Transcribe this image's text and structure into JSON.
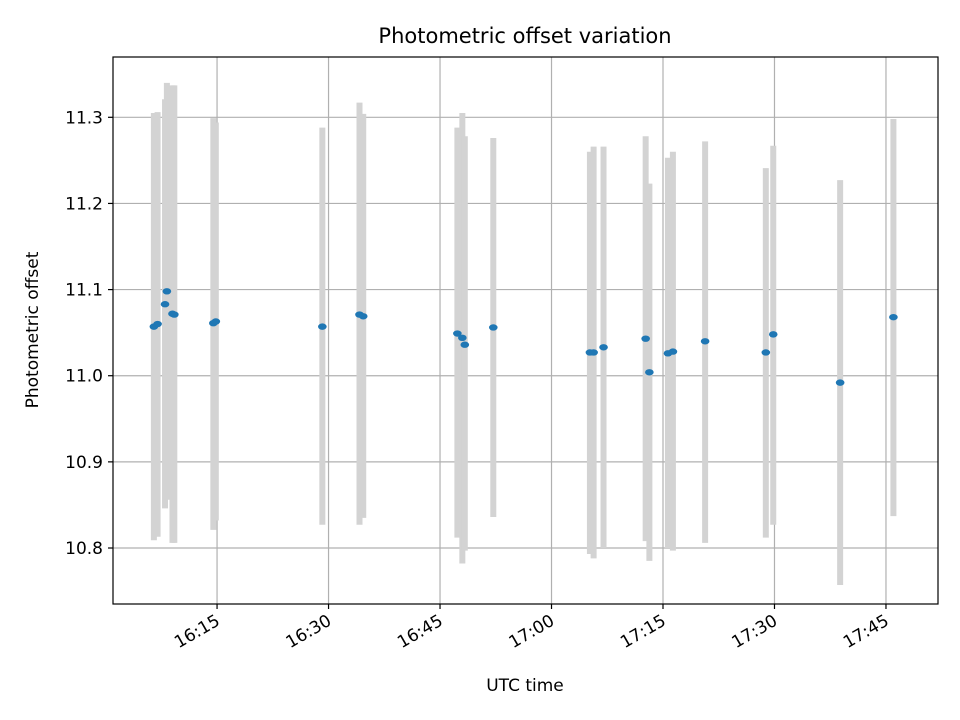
{
  "chart_data": {
    "type": "scatter",
    "title": "Photometric offset variation",
    "xlabel": "UTC time",
    "ylabel": "Photometric offset",
    "x_format": "HH:MM",
    "xlim": [
      "16:01",
      "17:52"
    ],
    "ylim": [
      10.735,
      11.37
    ],
    "x_ticks": [
      "16:15",
      "16:30",
      "16:45",
      "17:00",
      "17:15",
      "17:30",
      "17:45"
    ],
    "y_ticks": [
      "10.8",
      "10.9",
      "11.0",
      "11.1",
      "11.2",
      "11.3"
    ],
    "grid": true,
    "point_color": "#1f77b4",
    "errorbar_color": "#d3d3d3",
    "points": [
      {
        "x": "16:06:30",
        "y": 11.057,
        "ylo": 10.809,
        "yhi": 11.305
      },
      {
        "x": "16:07:00",
        "y": 11.06,
        "ylo": 10.813,
        "yhi": 11.306
      },
      {
        "x": "16:08:00",
        "y": 11.083,
        "ylo": 10.846,
        "yhi": 11.321
      },
      {
        "x": "16:08:15",
        "y": 11.098,
        "ylo": 10.856,
        "yhi": 11.34
      },
      {
        "x": "16:09:00",
        "y": 11.072,
        "ylo": 10.806,
        "yhi": 11.337
      },
      {
        "x": "16:09:15",
        "y": 11.071,
        "ylo": 10.806,
        "yhi": 11.337
      },
      {
        "x": "16:14:30",
        "y": 11.061,
        "ylo": 10.821,
        "yhi": 11.299
      },
      {
        "x": "16:14:50",
        "y": 11.063,
        "ylo": 10.832,
        "yhi": 11.294
      },
      {
        "x": "16:29:10",
        "y": 11.057,
        "ylo": 10.827,
        "yhi": 11.288
      },
      {
        "x": "16:34:10",
        "y": 11.071,
        "ylo": 10.827,
        "yhi": 11.317
      },
      {
        "x": "16:34:40",
        "y": 11.069,
        "ylo": 10.835,
        "yhi": 11.304
      },
      {
        "x": "16:47:20",
        "y": 11.049,
        "ylo": 10.812,
        "yhi": 11.288
      },
      {
        "x": "16:48:00",
        "y": 11.044,
        "ylo": 10.782,
        "yhi": 11.305
      },
      {
        "x": "16:48:20",
        "y": 11.036,
        "ylo": 10.797,
        "yhi": 11.278
      },
      {
        "x": "16:52:10",
        "y": 11.056,
        "ylo": 10.836,
        "yhi": 11.276
      },
      {
        "x": "17:05:10",
        "y": 11.027,
        "ylo": 10.793,
        "yhi": 11.26
      },
      {
        "x": "17:05:40",
        "y": 11.027,
        "ylo": 10.788,
        "yhi": 11.266
      },
      {
        "x": "17:07:00",
        "y": 11.033,
        "ylo": 10.8,
        "yhi": 11.266
      },
      {
        "x": "17:12:40",
        "y": 11.043,
        "ylo": 10.808,
        "yhi": 11.278
      },
      {
        "x": "17:13:10",
        "y": 11.004,
        "ylo": 10.785,
        "yhi": 11.223
      },
      {
        "x": "17:15:40",
        "y": 11.026,
        "ylo": 10.8,
        "yhi": 11.253
      },
      {
        "x": "17:16:20",
        "y": 11.028,
        "ylo": 10.797,
        "yhi": 11.26
      },
      {
        "x": "17:20:40",
        "y": 11.04,
        "ylo": 10.806,
        "yhi": 11.272
      },
      {
        "x": "17:28:50",
        "y": 11.027,
        "ylo": 10.812,
        "yhi": 11.241
      },
      {
        "x": "17:29:50",
        "y": 11.048,
        "ylo": 10.827,
        "yhi": 11.267
      },
      {
        "x": "17:38:50",
        "y": 10.992,
        "ylo": 10.757,
        "yhi": 11.227
      },
      {
        "x": "17:46:00",
        "y": 11.068,
        "ylo": 10.837,
        "yhi": 11.298
      }
    ]
  }
}
